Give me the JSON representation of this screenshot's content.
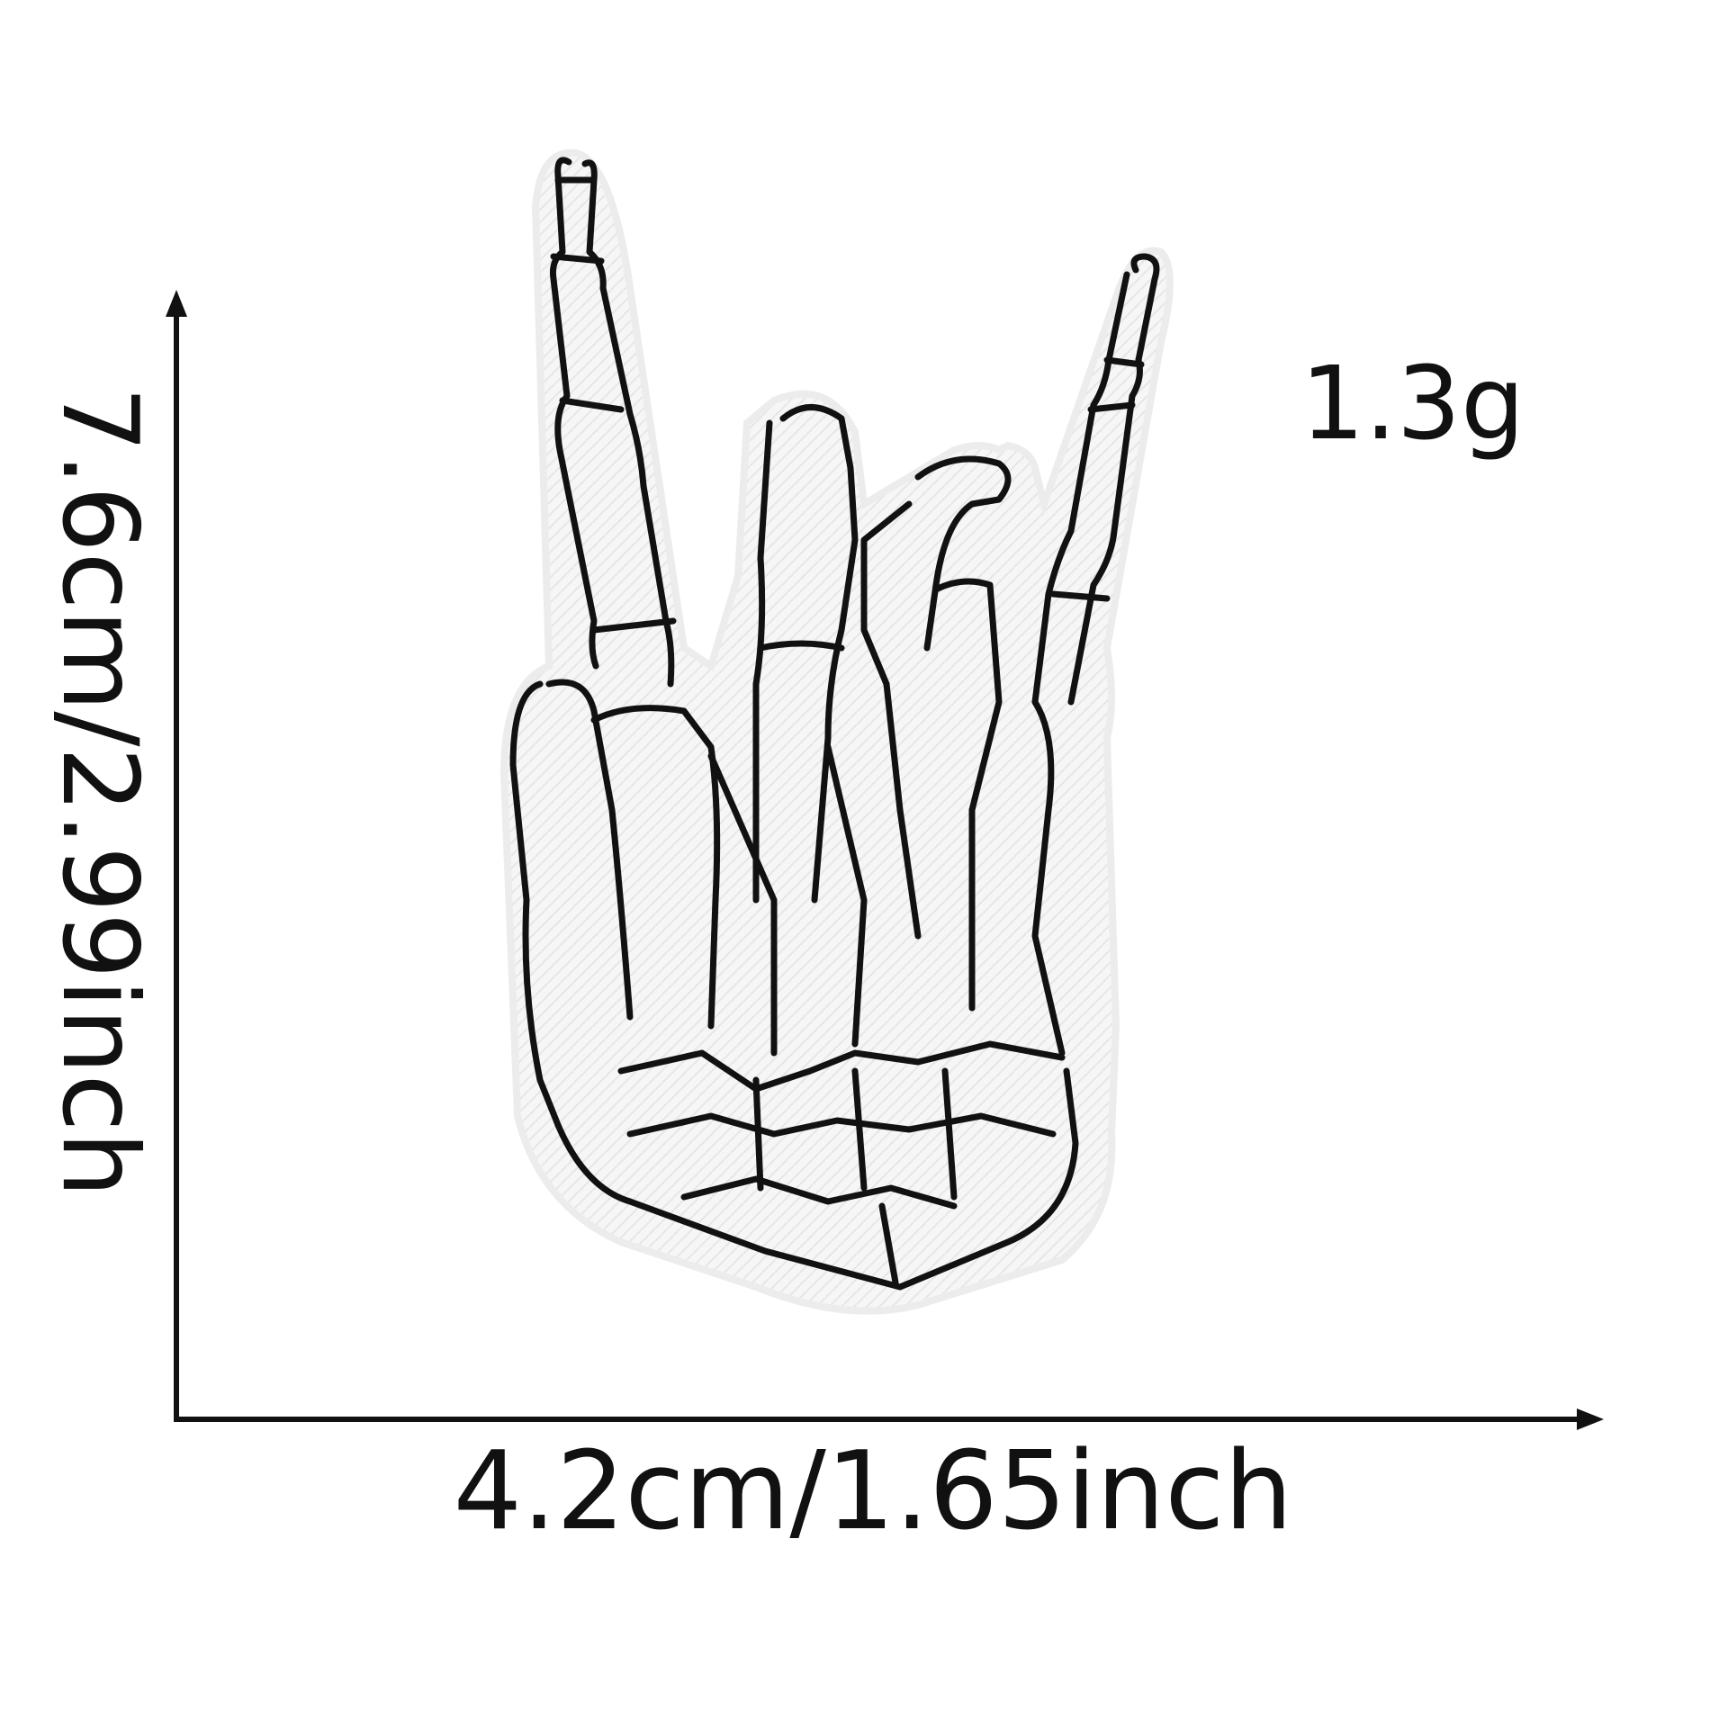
{
  "product": {
    "name": "skeleton hand rock sign embroidered patch",
    "patch_fill_color": "#f7f7f7",
    "outline_color": "#111111",
    "background_color": "#ffffff"
  },
  "dimensions": {
    "width_label": "4.2cm/1.65inch",
    "height_label": "7.6cm/2.99inch",
    "weight_label": "1.3g"
  },
  "icons": {
    "width_axis": "right-arrow-icon",
    "height_axis": "up-arrow-icon"
  }
}
